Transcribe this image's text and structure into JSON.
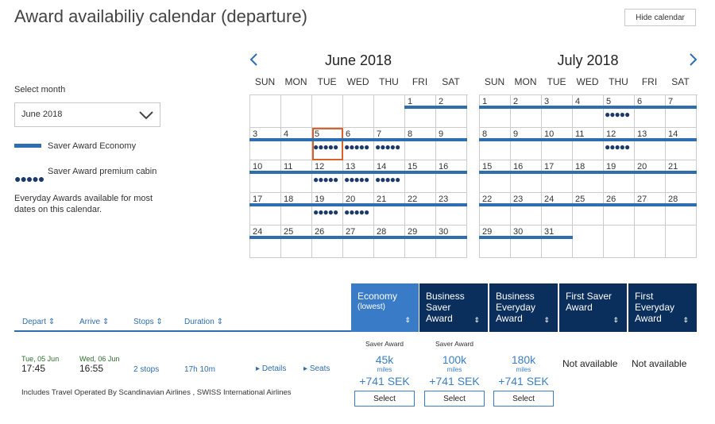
{
  "title": "Award availabiliy calendar (departure)",
  "hide_calendar": "Hide calendar",
  "legend": {
    "select_month_label": "Select month",
    "selected_month": "June 2018",
    "saver_economy": "Saver Award Economy",
    "saver_premium": "Saver Award premium cabin",
    "note": "Everyday Awards available for most dates on this calendar.",
    "dots": "●●●●●"
  },
  "days_of_week": [
    "SUN",
    "MON",
    "TUE",
    "WED",
    "THU",
    "FRI",
    "SAT"
  ],
  "calendars": [
    {
      "title": "June 2018",
      "weeks": [
        [
          null,
          null,
          null,
          null,
          null,
          {
            "d": "1",
            "bar": true
          },
          {
            "d": "2",
            "bar": true
          }
        ],
        [
          {
            "d": "3",
            "bar": true
          },
          {
            "d": "4",
            "bar": true
          },
          {
            "d": "5",
            "bar": true,
            "dots": true,
            "selected": true
          },
          {
            "d": "6",
            "bar": true,
            "dots": true
          },
          {
            "d": "7",
            "bar": true,
            "dots": true
          },
          {
            "d": "8",
            "bar": true
          },
          {
            "d": "9",
            "bar": true
          }
        ],
        [
          {
            "d": "10",
            "bar": true
          },
          {
            "d": "11",
            "bar": true
          },
          {
            "d": "12",
            "bar": true,
            "dots": true
          },
          {
            "d": "13",
            "bar": true,
            "dots": true
          },
          {
            "d": "14",
            "bar": true,
            "dots": true
          },
          {
            "d": "15",
            "bar": true
          },
          {
            "d": "16",
            "bar": true
          }
        ],
        [
          {
            "d": "17",
            "bar": true
          },
          {
            "d": "18",
            "bar": true
          },
          {
            "d": "19",
            "bar": true,
            "dots": true
          },
          {
            "d": "20",
            "bar": true,
            "dots": true
          },
          {
            "d": "21",
            "bar": true
          },
          {
            "d": "22",
            "bar": true
          },
          {
            "d": "23",
            "bar": true
          }
        ],
        [
          {
            "d": "24",
            "bar": true
          },
          {
            "d": "25",
            "bar": true
          },
          {
            "d": "26",
            "bar": true
          },
          {
            "d": "27",
            "bar": true
          },
          {
            "d": "28",
            "bar": true
          },
          {
            "d": "29",
            "bar": true
          },
          {
            "d": "30",
            "bar": true
          }
        ]
      ]
    },
    {
      "title": "July 2018",
      "weeks": [
        [
          {
            "d": "1",
            "bar": true
          },
          {
            "d": "2",
            "bar": true
          },
          {
            "d": "3",
            "bar": true
          },
          {
            "d": "4",
            "bar": true
          },
          {
            "d": "5",
            "bar": true,
            "dots": true
          },
          {
            "d": "6",
            "bar": true
          },
          {
            "d": "7",
            "bar": true
          }
        ],
        [
          {
            "d": "8",
            "bar": true
          },
          {
            "d": "9",
            "bar": true
          },
          {
            "d": "10",
            "bar": true
          },
          {
            "d": "11",
            "bar": true
          },
          {
            "d": "12",
            "bar": true,
            "dots": true
          },
          {
            "d": "13",
            "bar": true
          },
          {
            "d": "14",
            "bar": true
          }
        ],
        [
          {
            "d": "15",
            "bar": true
          },
          {
            "d": "16",
            "bar": true
          },
          {
            "d": "17",
            "bar": true
          },
          {
            "d": "18",
            "bar": true
          },
          {
            "d": "19",
            "bar": true
          },
          {
            "d": "20",
            "bar": true
          },
          {
            "d": "21",
            "bar": true
          }
        ],
        [
          {
            "d": "22",
            "bar": true
          },
          {
            "d": "23",
            "bar": true
          },
          {
            "d": "24",
            "bar": true
          },
          {
            "d": "25",
            "bar": true
          },
          {
            "d": "26",
            "bar": true
          },
          {
            "d": "27",
            "bar": true
          },
          {
            "d": "28",
            "bar": true
          }
        ],
        [
          {
            "d": "29",
            "bar": true
          },
          {
            "d": "30",
            "bar": true
          },
          {
            "d": "31",
            "bar": true
          },
          null,
          null,
          null,
          null
        ]
      ]
    }
  ],
  "results_header": {
    "depart": "Depart ⇕",
    "arrive": "Arrive ⇕",
    "stops": "Stops ⇕",
    "duration": "Duration ⇕"
  },
  "fare_columns": [
    {
      "line1": "Economy",
      "line2": "(lowest)",
      "line3": "",
      "arrow": "⇕",
      "color": "#3a7bc8"
    },
    {
      "line1": "Business",
      "line2": "Saver",
      "line3": "Award",
      "arrow": "⇕",
      "color": "#0b2f5c"
    },
    {
      "line1": "Business",
      "line2": "Everyday",
      "line3": "Award",
      "arrow": "⇕",
      "color": "#0b2f5c"
    },
    {
      "line1": "First Saver",
      "line2": "Award",
      "line3": "",
      "arrow": "⇕",
      "color": "#0b2f5c"
    },
    {
      "line1": "First",
      "line2": "Everyday",
      "line3": "Award",
      "arrow": "⇕",
      "color": "#0b2f5c"
    }
  ],
  "flight": {
    "depart_date": "Tue, 05 Jun",
    "depart_time": "17:45",
    "arrive_date": "Wed, 06 Jun",
    "arrive_time": "16:55",
    "stops": "2 stops",
    "duration": "17h 10m",
    "details": "Details",
    "seats": "Seats",
    "operated_by": "Includes Travel Operated By Scandinavian Airlines , SWISS International Airlines"
  },
  "prices": [
    {
      "tag": "Saver Award",
      "miles": "45k",
      "unit": "miles",
      "sek": "+741 SEK",
      "button": "Select"
    },
    {
      "tag": "Saver Award",
      "miles": "100k",
      "unit": "miles",
      "sek": "+741 SEK",
      "button": "Select"
    },
    {
      "tag": "",
      "miles": "180k",
      "unit": "miles",
      "sek": "+741 SEK",
      "button": "Select"
    }
  ],
  "not_available": [
    "Not available",
    "Not available"
  ]
}
